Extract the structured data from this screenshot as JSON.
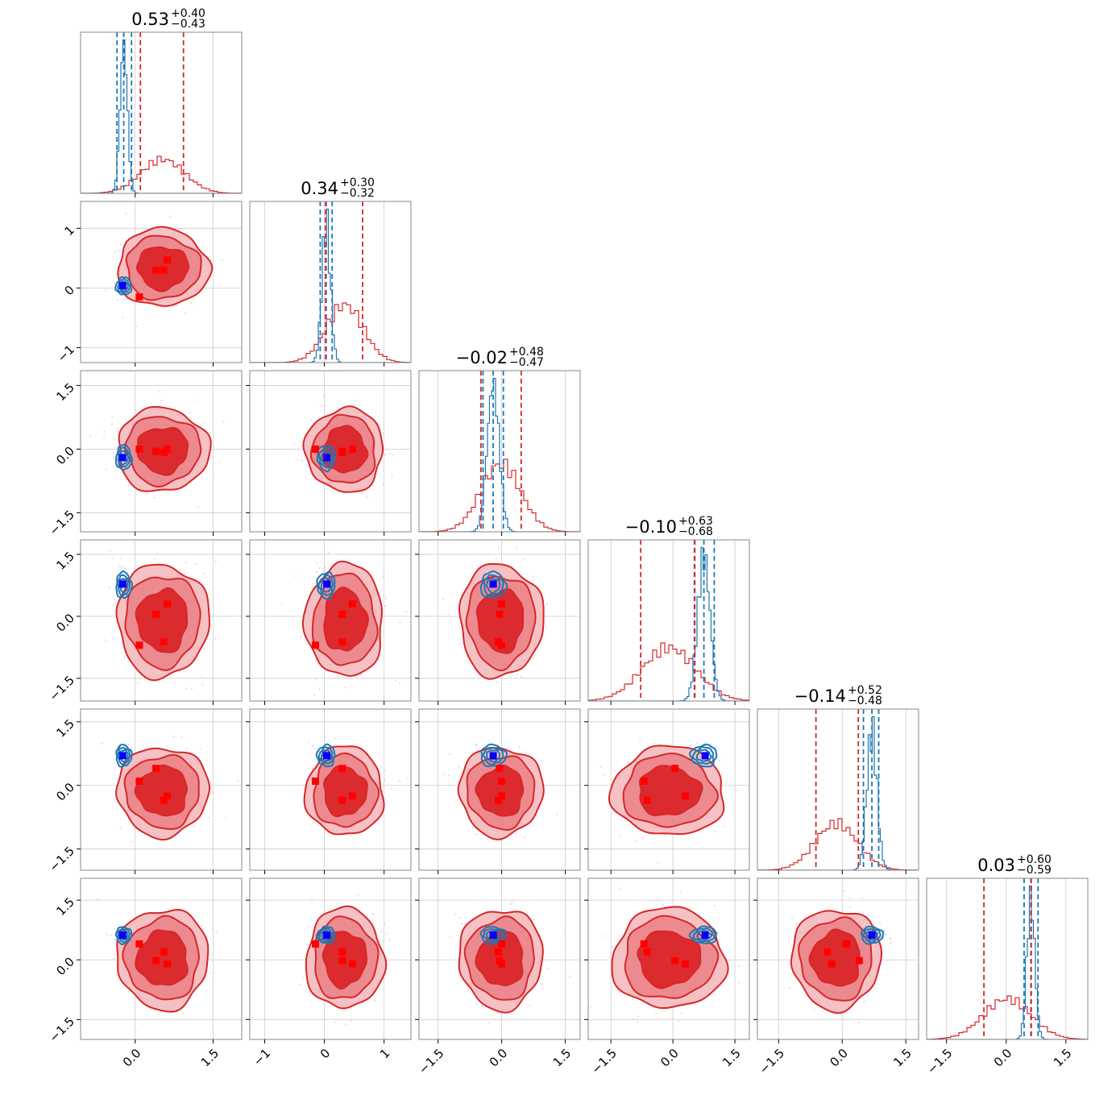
{
  "chart_data": {
    "type": "corner",
    "n_params": 6,
    "colors": {
      "primary": "#d62728",
      "secondary": "#1f77b4",
      "marker_primary": "#ff0000",
      "marker_secondary": "#0000ff",
      "grid": "#cccccc"
    },
    "titles": [
      {
        "median": "0.53",
        "plus": "+0.40",
        "minus": "−0.43"
      },
      {
        "median": "0.34",
        "plus": "+0.30",
        "minus": "−0.32"
      },
      {
        "median": "−0.02",
        "plus": "+0.48",
        "minus": "−0.47"
      },
      {
        "median": "−0.10",
        "plus": "+0.63",
        "minus": "−0.68"
      },
      {
        "median": "−0.14",
        "plus": "+0.52",
        "minus": "−0.48"
      },
      {
        "median": "0.03",
        "plus": "+0.60",
        "minus": "−0.59"
      }
    ],
    "axes": [
      {
        "range": [
          -1.05,
          2.05
        ],
        "ticks": [
          0.0,
          1.5
        ],
        "tick_labels": [
          "0.0",
          "1.5"
        ]
      },
      {
        "range": [
          -1.25,
          1.45
        ],
        "ticks": [
          -1,
          0,
          1
        ],
        "tick_labels": [
          "−1",
          "0",
          "1"
        ]
      },
      {
        "range": [
          -1.95,
          1.85
        ],
        "ticks": [
          -1.5,
          0.0,
          1.5
        ],
        "tick_labels": [
          "−1.5",
          "0.0",
          "1.5"
        ]
      },
      {
        "range": [
          -2.05,
          1.85
        ],
        "ticks": [
          -1.5,
          0.0,
          1.5
        ],
        "tick_labels": [
          "−1.5",
          "0.0",
          "1.5"
        ]
      },
      {
        "range": [
          -2.0,
          1.8
        ],
        "ticks": [
          -1.5,
          0.0,
          1.5
        ],
        "tick_labels": [
          "−1.5",
          "0.0",
          "1.5"
        ]
      },
      {
        "range": [
          -2.0,
          2.05
        ],
        "ticks": [
          -1.5,
          0.0,
          1.5
        ],
        "tick_labels": [
          "−1.5",
          "0.0",
          "1.5"
        ]
      }
    ],
    "distributions": {
      "primary": [
        {
          "mean": 0.53,
          "sd": 0.42
        },
        {
          "mean": 0.34,
          "sd": 0.31
        },
        {
          "mean": -0.02,
          "sd": 0.47
        },
        {
          "mean": -0.1,
          "sd": 0.65
        },
        {
          "mean": -0.14,
          "sd": 0.5
        },
        {
          "mean": 0.03,
          "sd": 0.6
        }
      ],
      "secondary": [
        {
          "mean": -0.22,
          "sd": 0.07
        },
        {
          "mean": 0.03,
          "sd": 0.07
        },
        {
          "mean": -0.2,
          "sd": 0.14
        },
        {
          "mean": 0.75,
          "sd": 0.15
        },
        {
          "mean": 0.7,
          "sd": 0.12
        },
        {
          "mean": 0.62,
          "sd": 0.1
        }
      ]
    },
    "quantile_lines": {
      "primary": [
        [
          0.1,
          0.93
        ],
        [
          0.02,
          0.64
        ],
        [
          -0.49,
          0.46
        ],
        [
          -0.78,
          0.53
        ],
        [
          -0.62,
          0.38
        ],
        [
          -0.56,
          0.63
        ]
      ],
      "secondary": [
        [
          -0.35,
          -0.07
        ],
        [
          -0.07,
          0.13
        ],
        [
          -0.44,
          0.04
        ],
        [
          0.52,
          1.0
        ],
        [
          0.5,
          0.86
        ],
        [
          0.45,
          0.8
        ]
      ]
    },
    "markers_secondary": [
      -0.24,
      0.04,
      -0.2,
      0.78,
      0.7,
      0.62
    ],
    "markers_primary": [
      [
        0.08,
        -0.15,
        0.0,
        -0.7,
        0.1,
        0.4
      ],
      [
        0.4,
        0.3,
        -0.05,
        0.05,
        0.4,
        -0.02
      ],
      [
        0.55,
        0.3,
        -0.08,
        -0.62,
        -0.35,
        0.2
      ],
      [
        0.62,
        0.47,
        0.0,
        0.3,
        -0.25,
        -0.1
      ]
    ]
  }
}
